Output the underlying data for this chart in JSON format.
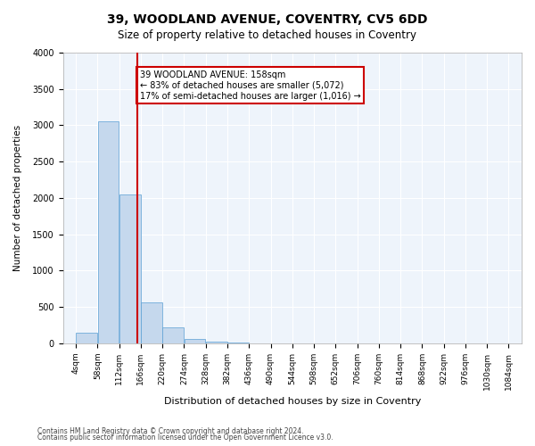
{
  "title": "39, WOODLAND AVENUE, COVENTRY, CV5 6DD",
  "subtitle": "Size of property relative to detached houses in Coventry",
  "xlabel": "Distribution of detached houses by size in Coventry",
  "ylabel": "Number of detached properties",
  "bar_color": "#c5d8ed",
  "bar_edge_color": "#5a9fd4",
  "background_color": "#eef4fb",
  "vline_x": 158,
  "vline_color": "#cc0000",
  "annotation_text": "39 WOODLAND AVENUE: 158sqm\n← 83% of detached houses are smaller (5,072)\n17% of semi-detached houses are larger (1,016) →",
  "annotation_box_color": "#cc0000",
  "categories": [
    "4sqm",
    "58sqm",
    "112sqm",
    "166sqm",
    "220sqm",
    "274sqm",
    "328sqm",
    "382sqm",
    "436sqm",
    "490sqm",
    "544sqm",
    "598sqm",
    "652sqm",
    "706sqm",
    "760sqm",
    "814sqm",
    "868sqm",
    "922sqm",
    "976sqm",
    "1030sqm",
    "1084sqm"
  ],
  "bin_edges": [
    4,
    58,
    112,
    166,
    220,
    274,
    328,
    382,
    436,
    490,
    544,
    598,
    652,
    706,
    760,
    814,
    868,
    922,
    976,
    1030,
    1084
  ],
  "values": [
    150,
    3050,
    2050,
    560,
    220,
    60,
    20,
    15,
    0,
    0,
    0,
    0,
    0,
    0,
    0,
    0,
    0,
    0,
    0,
    0
  ],
  "ylim": [
    0,
    4000
  ],
  "yticks": [
    0,
    500,
    1000,
    1500,
    2000,
    2500,
    3000,
    3500,
    4000
  ],
  "footnote1": "Contains HM Land Registry data © Crown copyright and database right 2024.",
  "footnote2": "Contains public sector information licensed under the Open Government Licence v3.0."
}
